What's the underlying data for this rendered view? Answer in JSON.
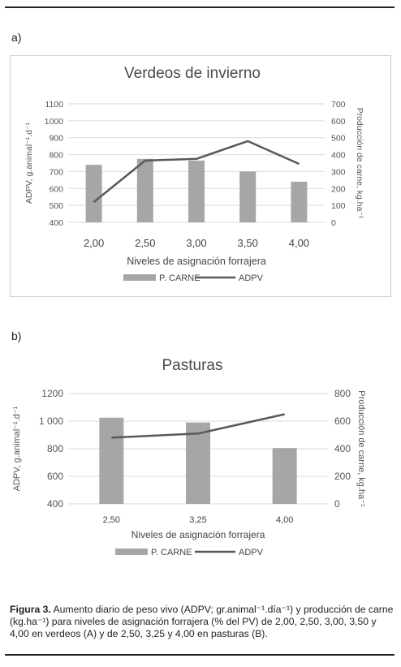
{
  "panel_a_label": "a)",
  "panel_b_label": "b)",
  "caption": {
    "bold": "Figura 3.",
    "text": " Aumento diario de peso vivo (ADPV; gr.animal⁻¹.día⁻¹) y producción de carne (kg.ha⁻¹) para niveles de asignación forrajera (% del PV) de 2,00, 2,50, 3,00, 3,50 y 4,00 en verdeos (A) y de 2,50, 3,25 y 4,00 en pasturas (B)."
  },
  "chart_data": [
    {
      "type": "bar+line",
      "title": "Verdeos de invierno",
      "xlabel": "Niveles de asignación forrajera",
      "ylabel_left": "ADPV, g.animal⁻¹.d⁻¹",
      "ylabel_right": "Producción de carne, kg.ha⁻¹",
      "categories": [
        "2,00",
        "2,50",
        "3,00",
        "3,50",
        "4,00"
      ],
      "ylim_left": [
        400,
        1100
      ],
      "yticks_left": [
        "400",
        "500",
        "600",
        "700",
        "800",
        "900",
        "1000",
        "1100"
      ],
      "ylim_right": [
        0,
        700
      ],
      "yticks_right": [
        "0",
        "100",
        "200",
        "300",
        "400",
        "500",
        "600",
        "700"
      ],
      "series": [
        {
          "name": "P. CARNE",
          "kind": "bar",
          "axis": "right",
          "color": "#a6a6a6",
          "values": [
            340,
            375,
            365,
            300,
            240
          ]
        },
        {
          "name": "ADPV",
          "kind": "line",
          "axis": "left",
          "color": "#595959",
          "values": [
            520,
            765,
            775,
            880,
            745
          ]
        }
      ],
      "legend": "bottom",
      "grid": true
    },
    {
      "type": "bar+line",
      "title": "Pasturas",
      "xlabel": "Niveles de asignación forrajera",
      "ylabel_left": "ADPV, g.animal⁻¹.d⁻¹",
      "ylabel_right": "Producción de carne, kg.ha⁻¹",
      "categories": [
        "2,50",
        "3,25",
        "4,00"
      ],
      "ylim_left": [
        400,
        1200
      ],
      "yticks_left": [
        "400",
        "600",
        "800",
        "1 000",
        "1200"
      ],
      "ylim_right": [
        0,
        800
      ],
      "yticks_right": [
        "0",
        "200",
        "400",
        "600",
        "800"
      ],
      "series": [
        {
          "name": "P. CARNE",
          "kind": "bar",
          "axis": "right",
          "color": "#a6a6a6",
          "values": [
            625,
            590,
            405
          ]
        },
        {
          "name": "ADPV",
          "kind": "line",
          "axis": "left",
          "color": "#595959",
          "values": [
            880,
            910,
            1050
          ]
        }
      ],
      "legend": "bottom",
      "grid": true
    }
  ]
}
